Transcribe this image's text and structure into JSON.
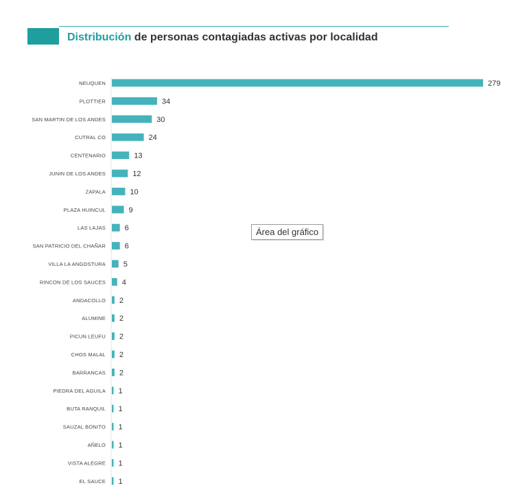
{
  "title": {
    "accent": "Distribución",
    "rest": "de personas contagiadas activas por localidad"
  },
  "tooltip": "Área del gráfico",
  "colors": {
    "accent": "#1f9e9e",
    "bar": "#45b3bb"
  },
  "chart_data": {
    "type": "bar",
    "orientation": "horizontal",
    "categories": [
      "NEUQUEN",
      "PLOTTIER",
      "SAN MARTIN DE LOS ANDES",
      "CUTRAL CO",
      "CENTENARIO",
      "JUNIN DE LOS ANDES",
      "ZAPALA",
      "PLAZA HUINCUL",
      "LAS LAJAS",
      "SAN PATRICIO DEL CHAÑAR",
      "VILLA LA ANGOSTURA",
      "RINCON DE LOS SAUCES",
      "ANDACOLLO",
      "ALUMINE",
      "PICUN LEUFU",
      "CHOS MALAL",
      "BARRANCAS",
      "PIEDRA DEL AGUILA",
      "BUTA RANQUIL",
      "SAUZAL BONITO",
      "AÑELO",
      "VISTA ALEGRE",
      "EL SAUCE"
    ],
    "values": [
      279,
      34,
      30,
      24,
      13,
      12,
      10,
      9,
      6,
      6,
      5,
      4,
      2,
      2,
      2,
      2,
      2,
      1,
      1,
      1,
      1,
      1,
      1
    ],
    "title": "Distribución de personas contagiadas activas por localidad",
    "xlabel": "",
    "ylabel": "",
    "xlim": [
      0,
      279
    ],
    "grid": false,
    "legend": "none"
  }
}
